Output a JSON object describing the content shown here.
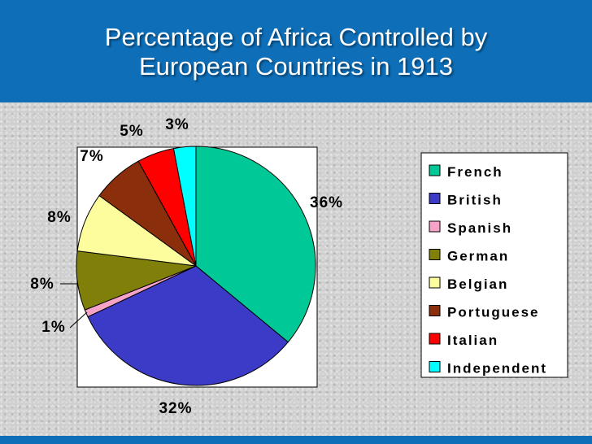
{
  "title": "Percentage of Africa Controlled by European Countries in 1913",
  "title_lines": [
    "Percentage of Africa Controlled by",
    "European Countries in 1913"
  ],
  "chart_data": {
    "type": "pie",
    "title": "Percentage of Africa Controlled by European Countries in 1913",
    "legend_position": "right",
    "slices": [
      {
        "name": "French",
        "value": 36,
        "label": "36%",
        "color": "#00c896"
      },
      {
        "name": "British",
        "value": 32,
        "label": "32%",
        "color": "#3b3bc8"
      },
      {
        "name": "Spanish",
        "value": 1,
        "label": "1%",
        "color": "#f7a3c8"
      },
      {
        "name": "German",
        "value": 8,
        "label": "8%",
        "color": "#7f7f0a"
      },
      {
        "name": "Belgian",
        "value": 8,
        "label": "8%",
        "color": "#fdfd9e"
      },
      {
        "name": "Portuguese",
        "value": 7,
        "label": "7%",
        "color": "#8b2e0c"
      },
      {
        "name": "Italian",
        "value": 5,
        "label": "5%",
        "color": "#ff0000"
      },
      {
        "name": "Independent",
        "value": 3,
        "label": "3%",
        "color": "#00ffff"
      }
    ]
  }
}
